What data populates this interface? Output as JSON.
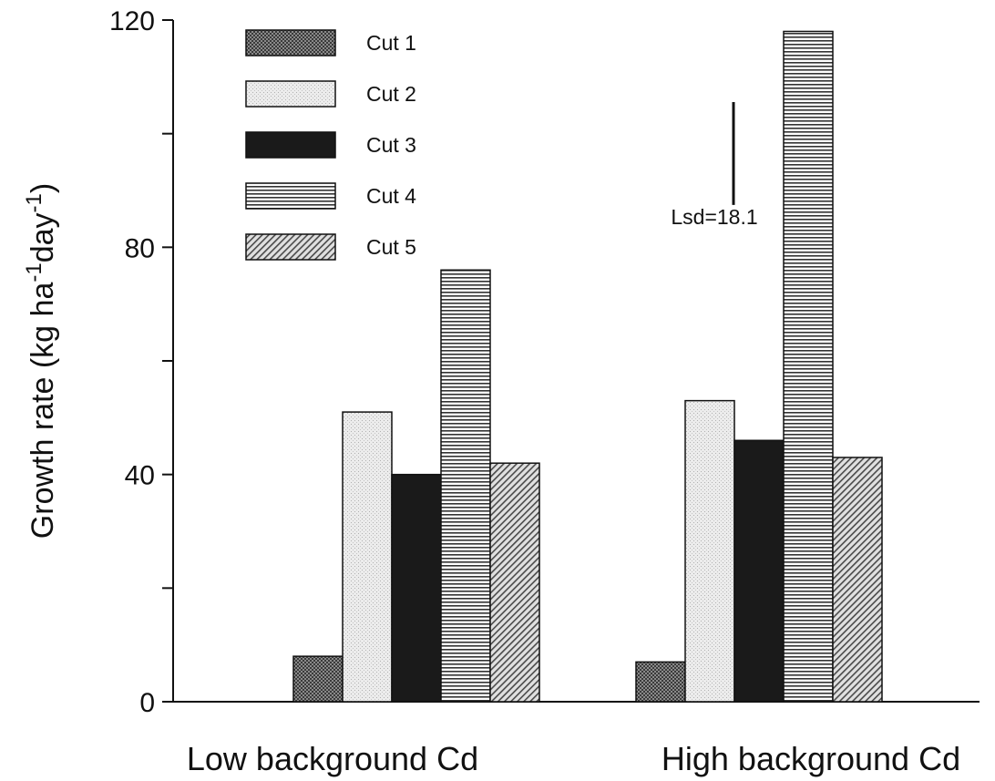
{
  "chart_data": {
    "type": "bar",
    "title": "",
    "xlabel": "",
    "ylabel": "Growth rate (kg ha",
    "ylabel_sup1": "-1",
    "ylabel_mid": "day",
    "ylabel_sup2": "-1",
    "ylabel_end": ")",
    "categories": [
      "Low background Cd",
      "High background Cd"
    ],
    "ylim": [
      0,
      120
    ],
    "yticks": [
      0,
      40,
      80,
      120
    ],
    "yticks_minor": [
      20,
      60,
      100
    ],
    "series": [
      {
        "name": "Cut 1",
        "values": [
          8,
          7
        ],
        "pattern": "cross"
      },
      {
        "name": "Cut 2",
        "values": [
          51,
          53
        ],
        "pattern": "dots"
      },
      {
        "name": "Cut 3",
        "values": [
          40,
          46
        ],
        "pattern": "solid"
      },
      {
        "name": "Cut 4",
        "values": [
          76,
          118
        ],
        "pattern": "hlines"
      },
      {
        "name": "Cut 5",
        "values": [
          42,
          43
        ],
        "pattern": "diag"
      }
    ],
    "lsd": {
      "label": "Lsd=18.1",
      "value": 18.1
    },
    "legend_position": "top-left",
    "grid": false
  }
}
